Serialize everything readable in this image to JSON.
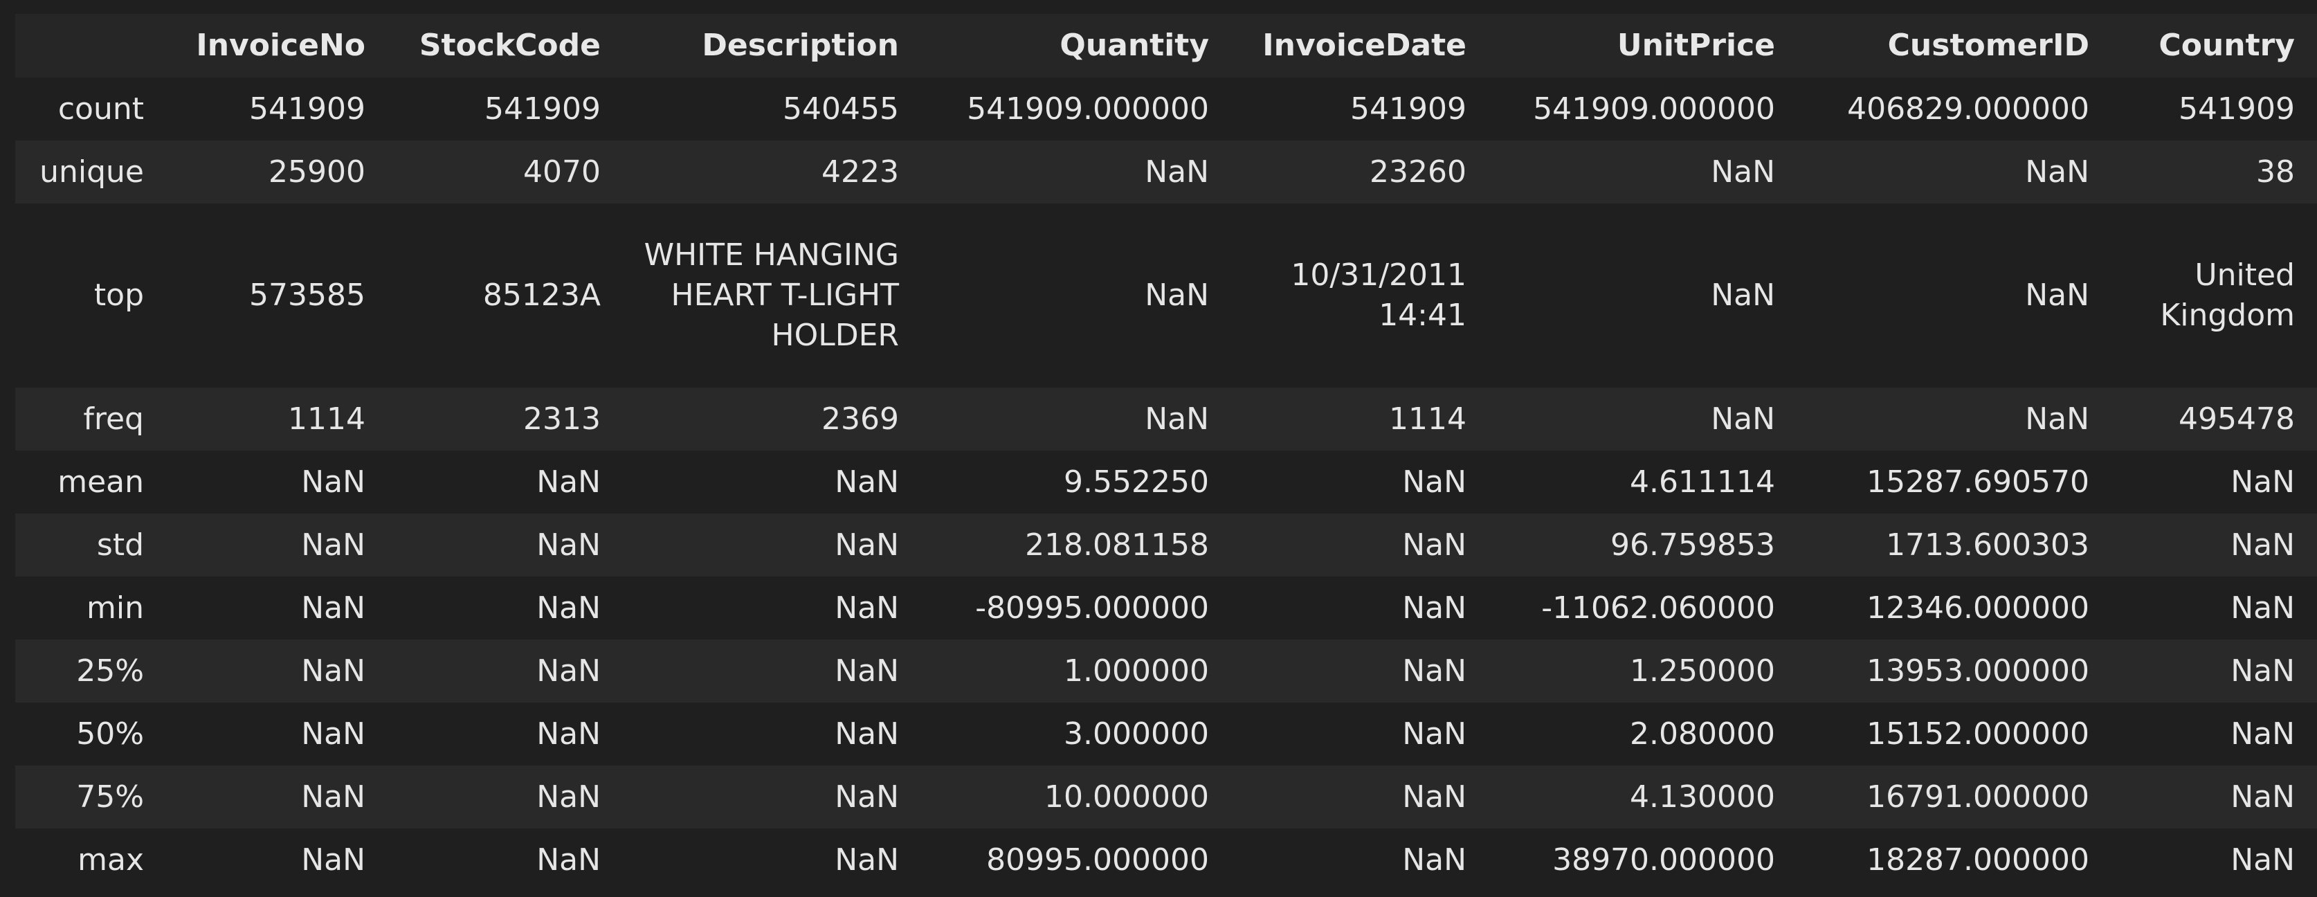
{
  "table": {
    "index_header": "",
    "columns": [
      "InvoiceNo",
      "StockCode",
      "Description",
      "Quantity",
      "InvoiceDate",
      "UnitPrice",
      "CustomerID",
      "Country"
    ],
    "rows": [
      {
        "label": "count",
        "cells": [
          "541909",
          "541909",
          "540455",
          "541909.000000",
          "541909",
          "541909.000000",
          "406829.000000",
          "541909"
        ]
      },
      {
        "label": "unique",
        "cells": [
          "25900",
          "4070",
          "4223",
          "NaN",
          "23260",
          "NaN",
          "NaN",
          "38"
        ]
      },
      {
        "label": "top",
        "cells": [
          "573585",
          "85123A",
          "WHITE HANGING HEART T-LIGHT HOLDER",
          "NaN",
          "10/31/2011 14:41",
          "NaN",
          "NaN",
          "United Kingdom"
        ]
      },
      {
        "label": "freq",
        "cells": [
          "1114",
          "2313",
          "2369",
          "NaN",
          "1114",
          "NaN",
          "NaN",
          "495478"
        ]
      },
      {
        "label": "mean",
        "cells": [
          "NaN",
          "NaN",
          "NaN",
          "9.552250",
          "NaN",
          "4.611114",
          "15287.690570",
          "NaN"
        ]
      },
      {
        "label": "std",
        "cells": [
          "NaN",
          "NaN",
          "NaN",
          "218.081158",
          "NaN",
          "96.759853",
          "1713.600303",
          "NaN"
        ]
      },
      {
        "label": "min",
        "cells": [
          "NaN",
          "NaN",
          "NaN",
          "-80995.000000",
          "NaN",
          "-11062.060000",
          "12346.000000",
          "NaN"
        ]
      },
      {
        "label": "25%",
        "cells": [
          "NaN",
          "NaN",
          "NaN",
          "1.000000",
          "NaN",
          "1.250000",
          "13953.000000",
          "NaN"
        ]
      },
      {
        "label": "50%",
        "cells": [
          "NaN",
          "NaN",
          "NaN",
          "3.000000",
          "NaN",
          "2.080000",
          "15152.000000",
          "NaN"
        ]
      },
      {
        "label": "75%",
        "cells": [
          "NaN",
          "NaN",
          "NaN",
          "10.000000",
          "NaN",
          "4.130000",
          "16791.000000",
          "NaN"
        ]
      },
      {
        "label": "max",
        "cells": [
          "NaN",
          "NaN",
          "NaN",
          "80995.000000",
          "NaN",
          "38970.000000",
          "18287.000000",
          "NaN"
        ]
      }
    ]
  }
}
